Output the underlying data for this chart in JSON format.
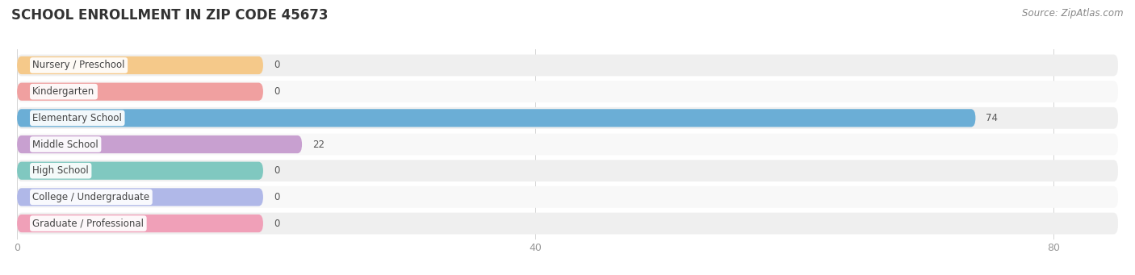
{
  "title": "SCHOOL ENROLLMENT IN ZIP CODE 45673",
  "source": "Source: ZipAtlas.com",
  "categories": [
    "Nursery / Preschool",
    "Kindergarten",
    "Elementary School",
    "Middle School",
    "High School",
    "College / Undergraduate",
    "Graduate / Professional"
  ],
  "values": [
    0,
    0,
    74,
    22,
    0,
    0,
    0
  ],
  "bar_colors": [
    "#f5c98a",
    "#f0a0a0",
    "#6baed6",
    "#c8a0d0",
    "#80c8c0",
    "#b0b8e8",
    "#f0a0b8"
  ],
  "xlim": [
    0,
    85
  ],
  "xticks": [
    0,
    40,
    80
  ],
  "title_fontsize": 12,
  "label_fontsize": 8.5,
  "tick_fontsize": 9,
  "source_fontsize": 8.5,
  "background_color": "#ffffff",
  "row_bg_color": "#efefef",
  "row_alt_bg_color": "#f8f8f8"
}
